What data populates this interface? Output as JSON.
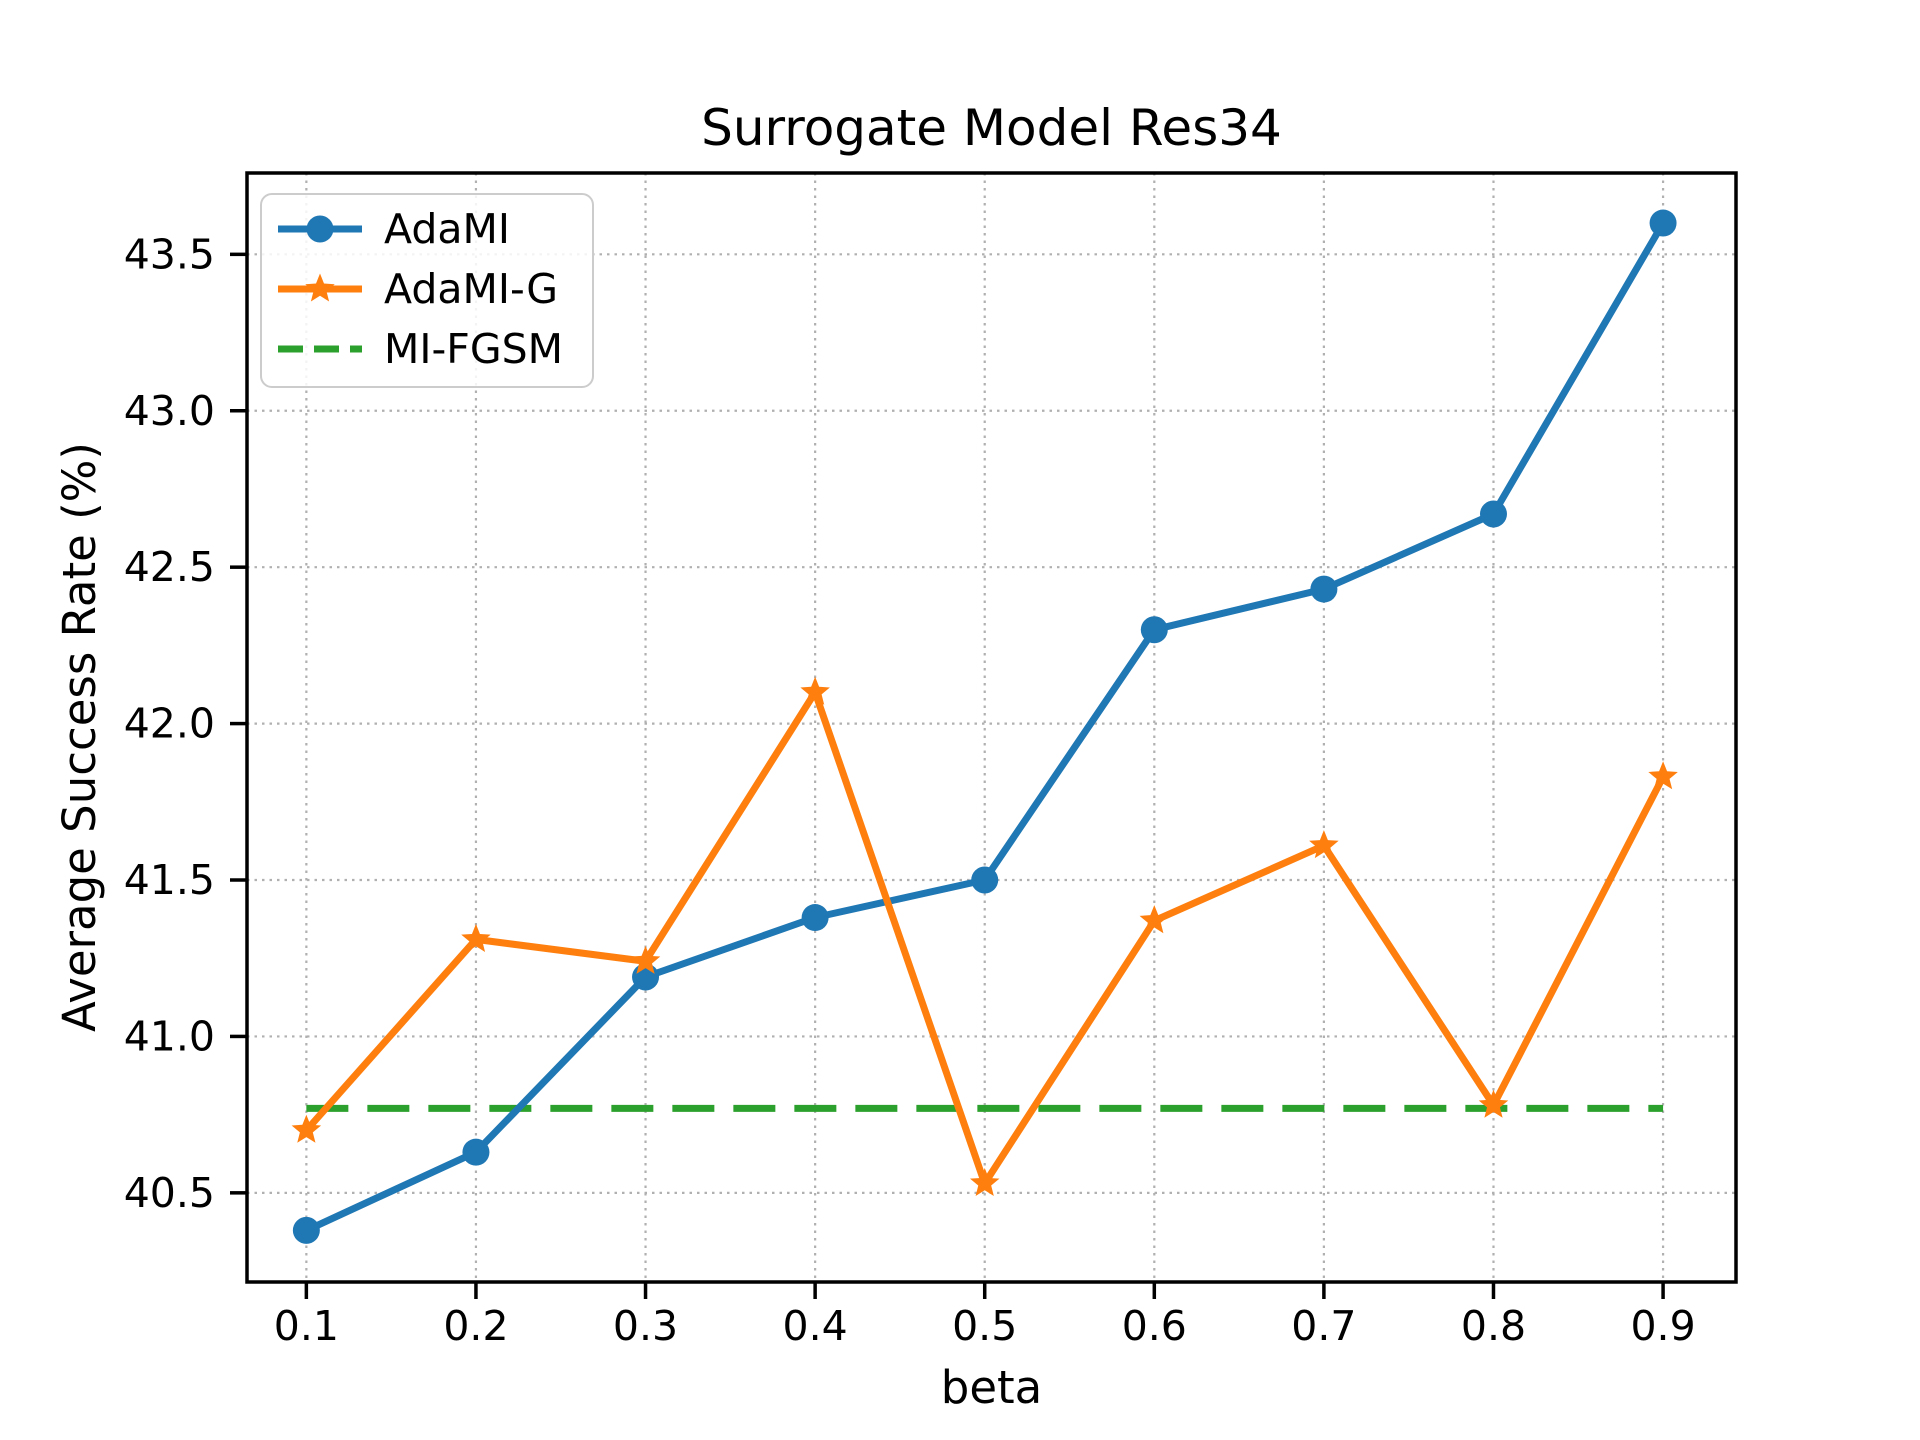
{
  "figure": {
    "background": "#ffffff"
  },
  "chart_data": {
    "type": "line",
    "title": "Surrogate Model Res34",
    "xlabel": "beta",
    "ylabel": "Average Success Rate (%)",
    "x": [
      0.1,
      0.2,
      0.3,
      0.4,
      0.5,
      0.6,
      0.7,
      0.8,
      0.9
    ],
    "xtick_labels": [
      "0.1",
      "0.2",
      "0.3",
      "0.4",
      "0.5",
      "0.6",
      "0.7",
      "0.8",
      "0.9"
    ],
    "ytick_values": [
      40.5,
      41.0,
      41.5,
      42.0,
      42.5,
      43.0,
      43.5
    ],
    "ytick_labels": [
      "40.5",
      "41.0",
      "41.5",
      "42.0",
      "42.5",
      "43.0",
      "43.5"
    ],
    "xlim": [
      0.065,
      0.943
    ],
    "ylim": [
      40.215,
      43.76
    ],
    "grid": true,
    "grid_style": "dotted",
    "legend_position": "upper left",
    "series": [
      {
        "name": "AdaMI",
        "color": "#1f77b4",
        "marker": "circle",
        "linestyle": "solid",
        "values": [
          40.38,
          40.63,
          41.19,
          41.38,
          41.5,
          42.3,
          42.43,
          42.67,
          43.6
        ]
      },
      {
        "name": "AdaMI-G",
        "color": "#ff7f0e",
        "marker": "star",
        "linestyle": "solid",
        "values": [
          40.7,
          41.31,
          41.24,
          42.1,
          40.53,
          41.37,
          41.61,
          40.78,
          41.83
        ]
      },
      {
        "name": "MI-FGSM",
        "color": "#2ca02c",
        "marker": "none",
        "linestyle": "dashed",
        "type": "hline",
        "value": 40.77
      }
    ],
    "colors": {
      "axis": "#000000",
      "text": "#000000",
      "grid": "#b0b0b0",
      "legend_border": "#cccccc"
    }
  }
}
